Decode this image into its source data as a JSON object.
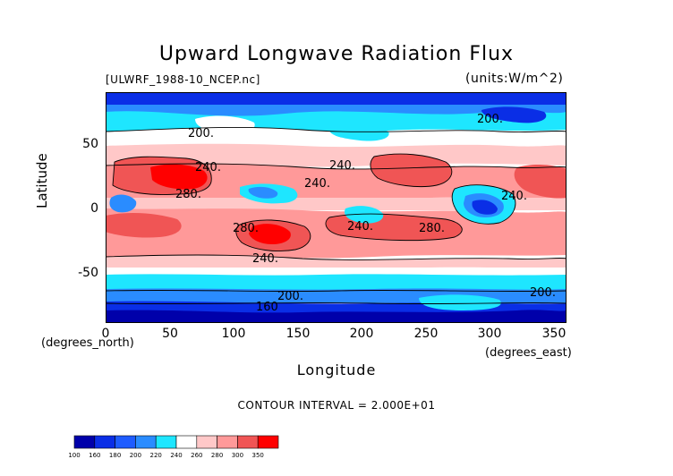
{
  "title": "Upward Longwave Radiation Flux",
  "file_label": "[ULWRF_1988-10_NCEP.nc]",
  "units_label": "(units:W/m^2)",
  "contour_interval_text": "CONTOUR INTERVAL = 2.000E+01",
  "chart_data": {
    "type": "heatmap",
    "title": "Upward Longwave Radiation Flux",
    "xlabel": "Longitude",
    "ylabel": "Latitude",
    "x_note": "(degrees_east)",
    "y_note": "(degrees_north)",
    "xlim": [
      0,
      360
    ],
    "ylim": [
      -90,
      90
    ],
    "xticks": [
      "0",
      "50",
      "100",
      "150",
      "200",
      "250",
      "300",
      "350"
    ],
    "yticks": [
      "50",
      "0",
      "-50"
    ],
    "contour_labels": [
      "200.",
      "240.",
      "280.",
      "240.",
      "240.",
      "280.",
      "240.",
      "280.",
      "240.",
      "200.",
      "240.",
      "200.",
      "200.",
      "160"
    ],
    "colorbar": {
      "levels": [
        "100",
        "160",
        "180",
        "200",
        "220",
        "240",
        "260",
        "280",
        "300",
        "350"
      ],
      "colors": [
        "#0000aa",
        "#0a2ee6",
        "#1e5cff",
        "#2a8cff",
        "#1ee6ff",
        "#ffffff",
        "#ffc8c8",
        "#ff9999",
        "#f05555",
        "#ff0000"
      ]
    }
  }
}
